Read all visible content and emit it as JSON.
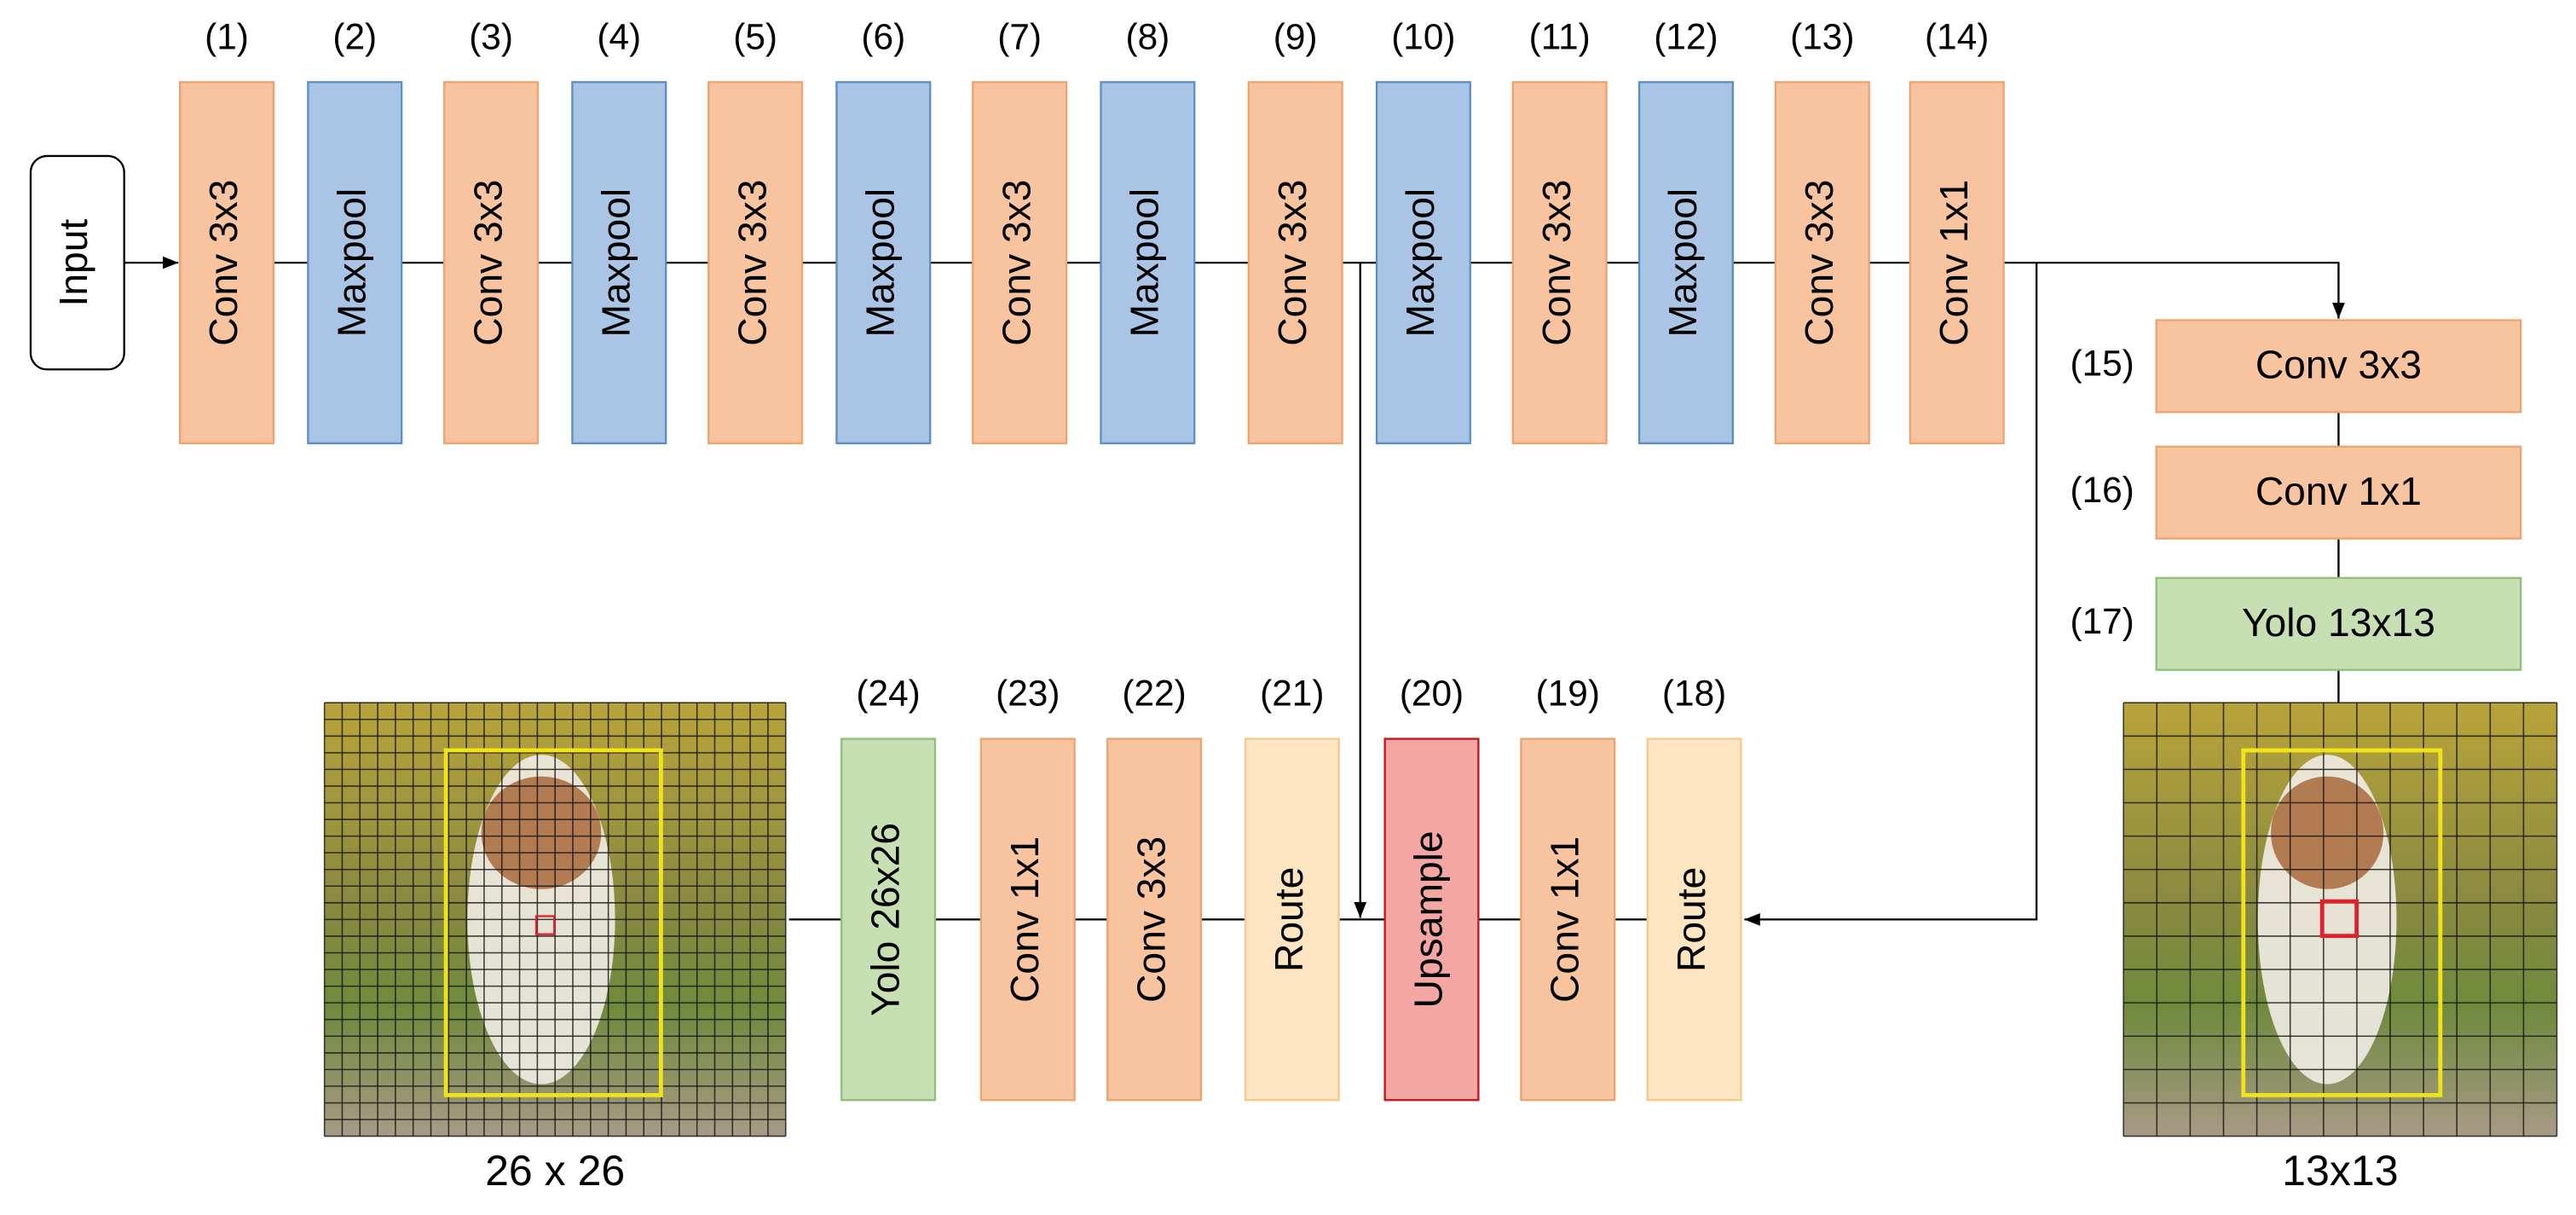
{
  "input": "Input",
  "nodes": [
    {
      "id": "(1)",
      "label": "Conv 3x3"
    },
    {
      "id": "(2)",
      "label": "Maxpool"
    },
    {
      "id": "(3)",
      "label": "Conv 3x3"
    },
    {
      "id": "(4)",
      "label": "Maxpool"
    },
    {
      "id": "(5)",
      "label": "Conv 3x3"
    },
    {
      "id": "(6)",
      "label": "Maxpool"
    },
    {
      "id": "(7)",
      "label": "Conv 3x3"
    },
    {
      "id": "(8)",
      "label": "Maxpool"
    },
    {
      "id": "(9)",
      "label": "Conv 3x3"
    },
    {
      "id": "(10)",
      "label": "Maxpool"
    },
    {
      "id": "(11)",
      "label": "Conv 3x3"
    },
    {
      "id": "(12)",
      "label": "Maxpool"
    },
    {
      "id": "(13)",
      "label": "Conv 3x3"
    },
    {
      "id": "(14)",
      "label": "Conv 1x1"
    },
    {
      "id": "(15)",
      "label": "Conv 3x3"
    },
    {
      "id": "(16)",
      "label": "Conv 1x1"
    },
    {
      "id": "(17)",
      "label": "Yolo 13x13"
    },
    {
      "id": "(18)",
      "label": "Route"
    },
    {
      "id": "(19)",
      "label": "Conv 1x1"
    },
    {
      "id": "(20)",
      "label": "Upsample"
    },
    {
      "id": "(21)",
      "label": "Route"
    },
    {
      "id": "(22)",
      "label": "Conv 3x3"
    },
    {
      "id": "(23)",
      "label": "Conv 1x1"
    },
    {
      "id": "(24)",
      "label": "Yolo 26x26"
    }
  ],
  "captions": [
    "26 x 26",
    "13x13"
  ]
}
